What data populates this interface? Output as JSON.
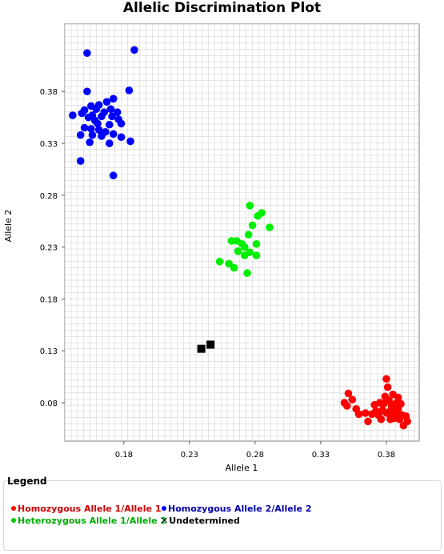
{
  "chart_data": {
    "type": "scatter",
    "title": "Allelic Discrimination Plot",
    "xlabel": "Allele 1",
    "ylabel": "Allele 2",
    "xlim": [
      0.135,
      0.405
    ],
    "ylim": [
      0.043,
      0.445
    ],
    "xticks": [
      0.18,
      0.23,
      0.28,
      0.33,
      0.38
    ],
    "xtick_labels": [
      "0.18",
      "0.23",
      "0.28",
      "0.33",
      "0.38"
    ],
    "yticks": [
      0.08,
      0.13,
      0.18,
      0.23,
      0.28,
      0.33,
      0.38
    ],
    "ytick_labels": [
      "0.08",
      "0.13",
      "0.18",
      "0.23",
      "0.28",
      "0.33",
      "0.38"
    ],
    "grid": true,
    "series": [
      {
        "name": "Homozygous Allele 1/Allele 1",
        "color": "#ff0000",
        "marker": "circle",
        "points": [
          [
            0.351,
            0.089
          ],
          [
            0.354,
            0.083
          ],
          [
            0.348,
            0.08
          ],
          [
            0.35,
            0.077
          ],
          [
            0.357,
            0.074
          ],
          [
            0.359,
            0.069
          ],
          [
            0.364,
            0.07
          ],
          [
            0.366,
            0.062
          ],
          [
            0.369,
            0.069
          ],
          [
            0.371,
            0.078
          ],
          [
            0.372,
            0.072
          ],
          [
            0.374,
            0.068
          ],
          [
            0.375,
            0.08
          ],
          [
            0.376,
            0.064
          ],
          [
            0.377,
            0.073
          ],
          [
            0.378,
            0.079
          ],
          [
            0.379,
            0.086
          ],
          [
            0.38,
            0.103
          ],
          [
            0.381,
            0.095
          ],
          [
            0.382,
            0.082
          ],
          [
            0.383,
            0.072
          ],
          [
            0.384,
            0.067
          ],
          [
            0.384,
            0.077
          ],
          [
            0.385,
            0.088
          ],
          [
            0.386,
            0.065
          ],
          [
            0.387,
            0.079
          ],
          [
            0.388,
            0.07
          ],
          [
            0.389,
            0.074
          ],
          [
            0.389,
            0.085
          ],
          [
            0.39,
            0.064
          ],
          [
            0.391,
            0.079
          ],
          [
            0.392,
            0.068
          ],
          [
            0.393,
            0.058
          ],
          [
            0.395,
            0.067
          ],
          [
            0.396,
            0.062
          ],
          [
            0.38,
            0.07
          ],
          [
            0.383,
            0.064
          ],
          [
            0.386,
            0.073
          ]
        ]
      },
      {
        "name": "Homozygous Allele 2/Allele 2",
        "color": "#0000ff",
        "marker": "circle",
        "points": [
          [
            0.188,
            0.42
          ],
          [
            0.152,
            0.417
          ],
          [
            0.184,
            0.381
          ],
          [
            0.152,
            0.38
          ],
          [
            0.172,
            0.373
          ],
          [
            0.167,
            0.37
          ],
          [
            0.161,
            0.367
          ],
          [
            0.155,
            0.366
          ],
          [
            0.15,
            0.362
          ],
          [
            0.148,
            0.359
          ],
          [
            0.159,
            0.363
          ],
          [
            0.165,
            0.36
          ],
          [
            0.17,
            0.363
          ],
          [
            0.175,
            0.36
          ],
          [
            0.141,
            0.357
          ],
          [
            0.153,
            0.355
          ],
          [
            0.156,
            0.357
          ],
          [
            0.163,
            0.356
          ],
          [
            0.171,
            0.356
          ],
          [
            0.176,
            0.353
          ],
          [
            0.178,
            0.349
          ],
          [
            0.169,
            0.348
          ],
          [
            0.16,
            0.349
          ],
          [
            0.15,
            0.345
          ],
          [
            0.155,
            0.344
          ],
          [
            0.161,
            0.343
          ],
          [
            0.166,
            0.341
          ],
          [
            0.172,
            0.339
          ],
          [
            0.163,
            0.337
          ],
          [
            0.156,
            0.338
          ],
          [
            0.147,
            0.338
          ],
          [
            0.178,
            0.336
          ],
          [
            0.185,
            0.332
          ],
          [
            0.169,
            0.33
          ],
          [
            0.154,
            0.331
          ],
          [
            0.147,
            0.313
          ],
          [
            0.172,
            0.299
          ],
          [
            0.158,
            0.352
          ]
        ]
      },
      {
        "name": "Heterozygous Allele 1/Allele 2",
        "color": "#00ee00",
        "marker": "circle",
        "points": [
          [
            0.276,
            0.27
          ],
          [
            0.285,
            0.263
          ],
          [
            0.282,
            0.26
          ],
          [
            0.291,
            0.249
          ],
          [
            0.278,
            0.251
          ],
          [
            0.275,
            0.242
          ],
          [
            0.262,
            0.236
          ],
          [
            0.266,
            0.236
          ],
          [
            0.27,
            0.233
          ],
          [
            0.281,
            0.233
          ],
          [
            0.272,
            0.23
          ],
          [
            0.267,
            0.226
          ],
          [
            0.276,
            0.225
          ],
          [
            0.281,
            0.222
          ],
          [
            0.272,
            0.222
          ],
          [
            0.253,
            0.216
          ],
          [
            0.26,
            0.214
          ],
          [
            0.264,
            0.21
          ],
          [
            0.274,
            0.205
          ]
        ]
      },
      {
        "name": "Undetermined",
        "color": "#000000",
        "marker": "square",
        "points": [
          [
            0.239,
            0.132
          ],
          [
            0.246,
            0.136
          ]
        ]
      }
    ],
    "legend": {
      "title": "Legend",
      "position": "bottom"
    }
  }
}
